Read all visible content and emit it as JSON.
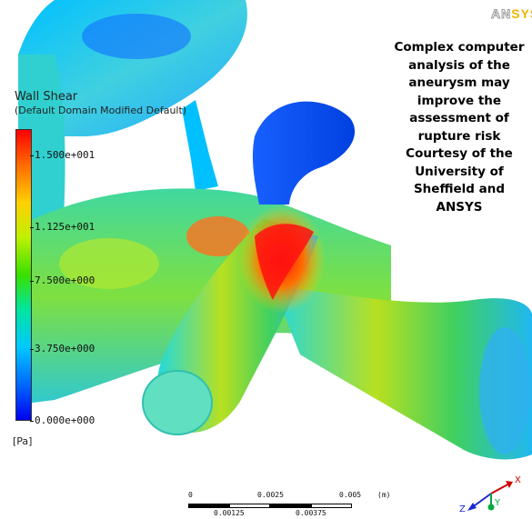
{
  "logo": {
    "an": "AN",
    "sys": "SYS"
  },
  "legend": {
    "title": "Wall Shear",
    "subtitle": "(Default Domain Modified Default)",
    "ticks": [
      "1.500e+001",
      "1.125e+001",
      "7.500e+000",
      "3.750e+000",
      "0.000e+000"
    ],
    "units": "[Pa]"
  },
  "caption": [
    "Complex computer",
    "analysis of the",
    "aneurysm may",
    "improve the",
    "assessment of",
    "rupture risk",
    "Courtesy of the",
    "University of",
    "Sheffield and",
    "ANSYS"
  ],
  "scale_bar": {
    "top": [
      "0",
      "0.0025",
      "0.005",
      "(m)"
    ],
    "bottom": [
      "0.00125",
      "0.00375"
    ]
  },
  "axes": {
    "x": "X",
    "y": "Y",
    "z": "Z"
  },
  "colors": {
    "high": "#ff0000",
    "mid": "#39e000",
    "low": "#0000ee",
    "logo_accent": "#f0b400"
  }
}
